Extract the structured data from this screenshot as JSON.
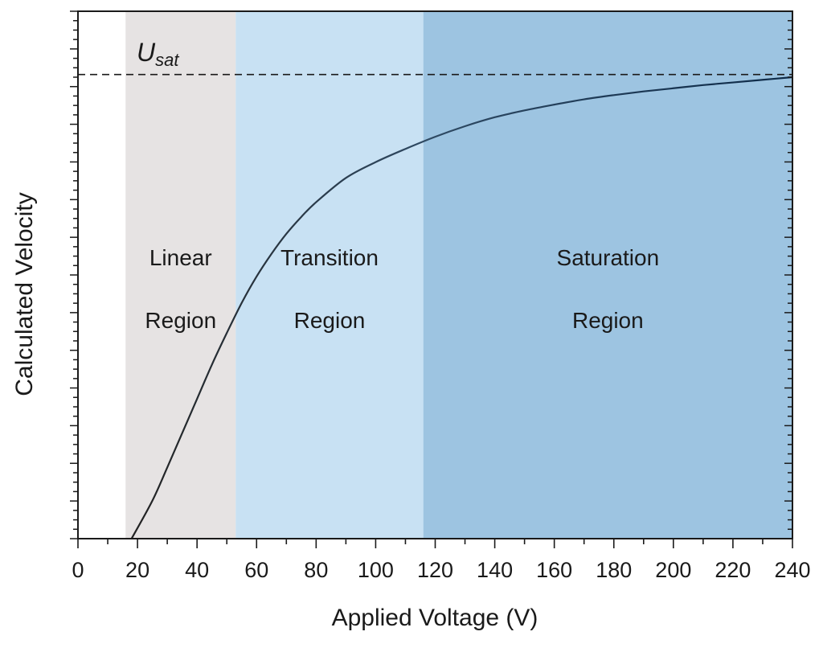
{
  "chart_data": {
    "type": "line",
    "title": "",
    "xlabel": "Applied Voltage (V)",
    "ylabel": "Calculated Velocity",
    "xlim": [
      0,
      240
    ],
    "ylim": [
      0,
      1.0
    ],
    "x_ticks": [
      0,
      20,
      40,
      60,
      80,
      100,
      120,
      140,
      160,
      180,
      200,
      220,
      240
    ],
    "y_ticks_labeled": false,
    "grid": false,
    "saturation_line": {
      "label_main": "U",
      "label_sub": "sat",
      "value": 0.88,
      "style": "dashed"
    },
    "regions": [
      {
        "name": "linear",
        "label_line1": "Linear",
        "label_line2": "Region",
        "x_start": 16,
        "x_end": 53,
        "color": "#e6e3e3"
      },
      {
        "name": "transition",
        "label_line1": "Transition",
        "label_line2": "Region",
        "x_start": 53,
        "x_end": 116,
        "color": "#c8e1f3"
      },
      {
        "name": "saturation",
        "label_line1": "Saturation",
        "label_line2": "Region",
        "x_start": 116,
        "x_end": 240,
        "color": "#9dc4e1"
      }
    ],
    "series": [
      {
        "name": "Calculated Velocity",
        "x": [
          18,
          25,
          30,
          35,
          40,
          45,
          50,
          55,
          60,
          65,
          70,
          75,
          80,
          90,
          100,
          110,
          120,
          130,
          140,
          150,
          160,
          170,
          180,
          190,
          200,
          210,
          220,
          230,
          240
        ],
        "y": [
          0.0,
          0.072,
          0.135,
          0.2,
          0.265,
          0.33,
          0.39,
          0.447,
          0.497,
          0.54,
          0.578,
          0.61,
          0.638,
          0.684,
          0.714,
          0.739,
          0.762,
          0.782,
          0.799,
          0.812,
          0.823,
          0.833,
          0.841,
          0.848,
          0.854,
          0.86,
          0.865,
          0.87,
          0.875
        ]
      }
    ]
  }
}
